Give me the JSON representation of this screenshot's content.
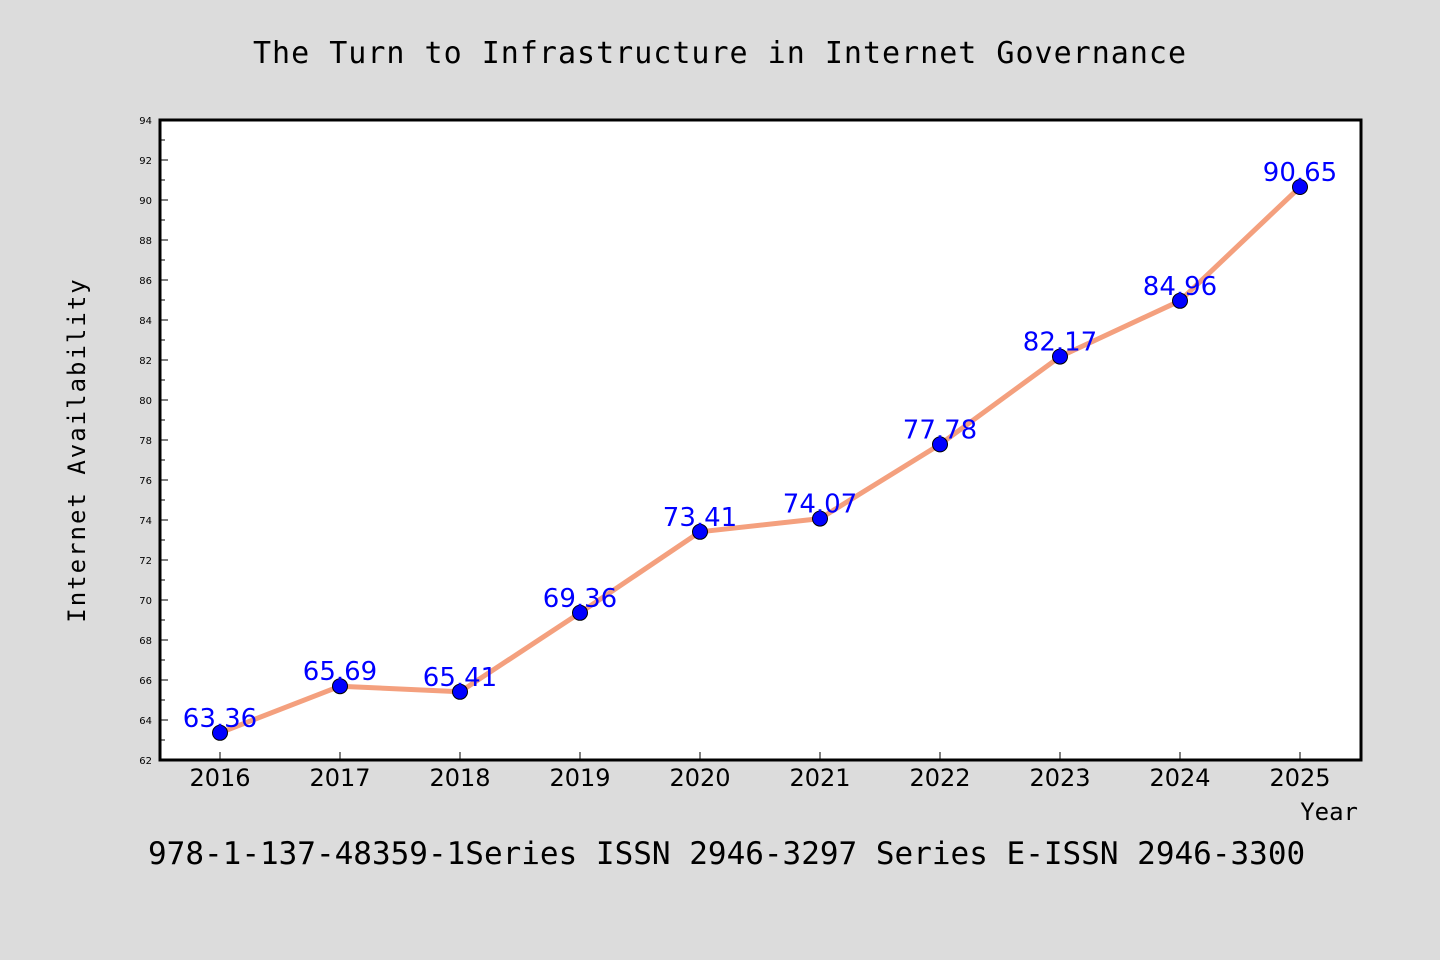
{
  "chart_data": {
    "type": "line",
    "title": "The Turn to Infrastructure in Internet Governance",
    "xlabel": "Year",
    "ylabel": "Internet Availability",
    "categories": [
      "2016",
      "2017",
      "2018",
      "2019",
      "2020",
      "2021",
      "2022",
      "2023",
      "2024",
      "2025"
    ],
    "series": [
      {
        "values": [
          63.36,
          65.69,
          65.41,
          69.36,
          73.41,
          74.07,
          77.78,
          82.17,
          84.96,
          90.65
        ],
        "data_labels": [
          "63.36",
          "65.69",
          "65.41",
          "69.36",
          "73.41",
          "74.07",
          "77.78",
          "82.17",
          "84.96",
          "90.65"
        ],
        "line_color": "#f4a07e",
        "marker_color": "#0000ff"
      }
    ],
    "ylim": [
      62,
      94
    ],
    "yticks": [
      "62",
      "64",
      "66",
      "68",
      "70",
      "72",
      "74",
      "76",
      "78",
      "80",
      "82",
      "84",
      "86",
      "88",
      "90",
      "92",
      "94"
    ],
    "grid": false,
    "legend": false
  },
  "footer": "978-1-137-48359-1Series ISSN 2946-3297 Series E-ISSN 2946-3300",
  "colors": {
    "background": "#dcdcdc",
    "plot_background": "#ffffff",
    "line": "#f4a07e",
    "marker": "#0000ff",
    "data_label": "#0000ff"
  }
}
